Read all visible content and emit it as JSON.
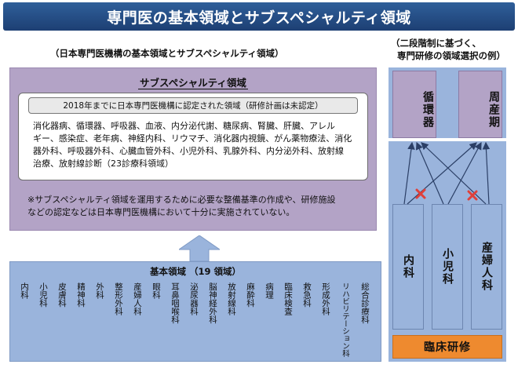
{
  "title": "専門医の基本領域とサブスペシャルティ領域",
  "left_caption": "（日本専門医機構の基本領域とサブスペシャルティ領域）",
  "right_caption_lines": [
    "（二段階制に基づく、",
    "専門研修の領域選択の例）"
  ],
  "subspecialty": {
    "heading": "サブスペシャルティ領域",
    "note": "2018年までに日本専門医機構に認定された領域（研修計画は未認定）",
    "list_lines": [
      "消化器病、循環器、呼吸器、血液、内分泌代謝、糖尿病、腎臓、肝臓、アレル",
      "ギー、感染症、老年病、神経内科、リウマチ、消化器内視鏡、がん薬物療法、消化",
      "器外科、呼吸器外科、心臓血管外科、小児外科、乳腺外科、内分泌外科、放射線",
      "治療、放射線診断（23診療科領域）"
    ],
    "warning_lines": [
      "※サブスペシャルティ領域を運用するために必要な整備基準の作成や、研修施設",
      "などの認定などは日本専門医機構において十分に実施されていない。"
    ]
  },
  "basic": {
    "heading": "基本領域 （19 領域）",
    "fields": [
      "内科",
      "小児科",
      "皮膚科",
      "精神科",
      "外科",
      "整形外科",
      "産婦人科",
      "眼科",
      "耳鼻咽喉科",
      "泌尿器科",
      "脳神経外科",
      "放射線科",
      "麻酔科",
      "病理",
      "臨床検査",
      "救急科",
      "形成外科",
      "リハビリテーション科",
      "総合診療科"
    ]
  },
  "example": {
    "subspecialties": [
      "循環器",
      "周産期"
    ],
    "basics": [
      "内科",
      "小児科",
      "産婦人科"
    ],
    "training": "臨床研修"
  },
  "colors": {
    "title_bg": "#1d3f73",
    "purple": "#b3a3c6",
    "blue": "#9ab4dc",
    "orange": "#ee8a2f",
    "cross": "#e0403a"
  }
}
